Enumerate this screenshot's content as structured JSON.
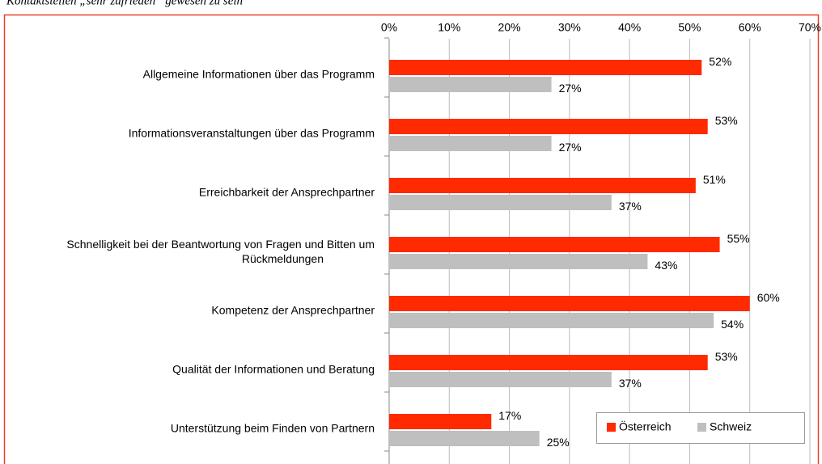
{
  "chart_data": {
    "type": "bar",
    "orientation": "horizontal",
    "subtitle": "Kontaktstellen „sehr zufrieden“ gewesen zu sein",
    "categories": [
      "Allgemeine Informationen über das Programm",
      "Informationsveranstaltungen über das Programm",
      "Erreichbarkeit der Ansprechpartner",
      "Schnelligkeit bei der Beantwortung von Fragen und Bitten um Rückmeldungen",
      "Kompetenz der Ansprechpartner",
      "Qualität der Informationen und Beratung",
      "Unterstützung beim Finden von Partnern"
    ],
    "series": [
      {
        "name": "Österreich",
        "color": "#ff2a00",
        "values": [
          52,
          53,
          51,
          55,
          60,
          53,
          17
        ],
        "value_labels": [
          "52%",
          "53%",
          "51%",
          "55%",
          "60%",
          "53%",
          "17%"
        ]
      },
      {
        "name": "Schweiz",
        "color": "#bfbfbf",
        "values": [
          27,
          27,
          37,
          43,
          54,
          37,
          25
        ],
        "value_labels": [
          "27%",
          "27%",
          "37%",
          "43%",
          "54%",
          "37%",
          "25%"
        ]
      }
    ],
    "xlim": [
      0,
      70
    ],
    "xticks": [
      {
        "value": 0,
        "label": "0%"
      },
      {
        "value": 10,
        "label": "10%"
      },
      {
        "value": 20,
        "label": "20%"
      },
      {
        "value": 30,
        "label": "30%"
      },
      {
        "value": 40,
        "label": "40%"
      },
      {
        "value": 50,
        "label": "50%"
      },
      {
        "value": 60,
        "label": "60%"
      },
      {
        "value": 70,
        "label": "70%"
      }
    ],
    "grid": true,
    "legend": "lower right"
  }
}
